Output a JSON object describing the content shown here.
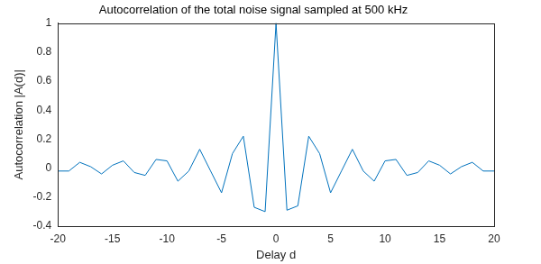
{
  "chart_data": {
    "type": "line",
    "title": "Autocorrelation of the total noise signal sampled at 500 kHz",
    "x_label": "Delay d",
    "y_label": "Autocorrelation |A(d)|",
    "x": [
      -20,
      -19,
      -18,
      -17,
      -16,
      -15,
      -14,
      -13,
      -12,
      -11,
      -10,
      -9,
      -8,
      -7,
      -6,
      -5,
      -4,
      -3,
      -2,
      -1,
      0,
      1,
      2,
      3,
      4,
      5,
      6,
      7,
      8,
      9,
      10,
      11,
      12,
      13,
      14,
      15,
      16,
      17,
      18,
      19,
      20
    ],
    "values": [
      -0.02,
      -0.02,
      0.04,
      0.01,
      -0.04,
      0.02,
      0.05,
      -0.03,
      -0.05,
      0.06,
      0.05,
      -0.09,
      -0.02,
      0.13,
      -0.02,
      -0.17,
      0.1,
      0.22,
      -0.27,
      -0.3,
      1,
      -0.29,
      -0.26,
      0.22,
      0.1,
      -0.17,
      -0.02,
      0.13,
      -0.02,
      -0.09,
      0.05,
      0.06,
      -0.05,
      -0.03,
      0.05,
      0.02,
      -0.04,
      0.01,
      0.04,
      -0.02,
      -0.02
    ],
    "color": "#0072bd",
    "xlim": [
      -20,
      20
    ],
    "xticks": [
      -20,
      -15,
      -10,
      -5,
      0,
      5,
      10,
      15,
      20
    ],
    "ylim": [
      -0.4,
      1
    ],
    "yticks": [
      -0.4,
      -0.2,
      0,
      0.2,
      0.4,
      0.6,
      0.8,
      1
    ],
    "grid": false
  }
}
